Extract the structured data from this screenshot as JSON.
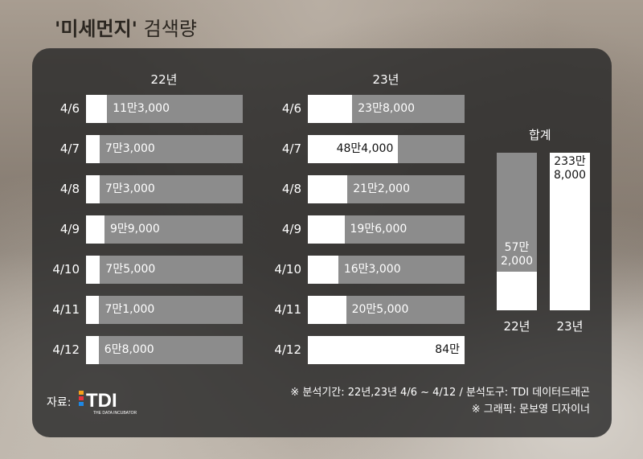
{
  "title": {
    "quoted": "'미세먼지'",
    "rest": "검색량"
  },
  "chart_data": {
    "type": "bar",
    "title": "'미세먼지' 검색량",
    "categories": [
      "4/6",
      "4/7",
      "4/8",
      "4/9",
      "4/10",
      "4/11",
      "4/12"
    ],
    "scale_max": 840000,
    "series": [
      {
        "name": "22년",
        "values": [
          113000,
          73000,
          73000,
          99000,
          75000,
          71000,
          68000
        ],
        "labels": [
          "11만3,000",
          "7만3,000",
          "7만3,000",
          "9만9,000",
          "7만5,000",
          "7만1,000",
          "6만8,000"
        ]
      },
      {
        "name": "23년",
        "values": [
          238000,
          484000,
          212000,
          196000,
          163000,
          205000,
          840000
        ],
        "labels": [
          "23만8,000",
          "48만4,000",
          "21만2,000",
          "19만6,000",
          "16만3,000",
          "20만5,000",
          "84만"
        ]
      }
    ],
    "total": {
      "title": "합계",
      "scale_max": 2338000,
      "values": [
        572000,
        2338000
      ],
      "labels": [
        [
          "57만",
          "2,000"
        ],
        [
          "233만",
          "8,000"
        ]
      ],
      "categories": [
        "22년",
        "23년"
      ]
    }
  },
  "footer": {
    "source_label": "자료:",
    "logo_text": "TDI",
    "logo_sub": "THE DATA INCUBATOR",
    "note1": "※ 분석기간: 22년,23년 4/6 ~ 4/12 / 분석도구: TDI 데이터드래곤",
    "note2": "※ 그래픽: 문보영 디자이너"
  },
  "colors": {
    "panel": "#2a2a2a",
    "bar_fill": "#ffffff",
    "bar_track": "#8c8c8c"
  }
}
